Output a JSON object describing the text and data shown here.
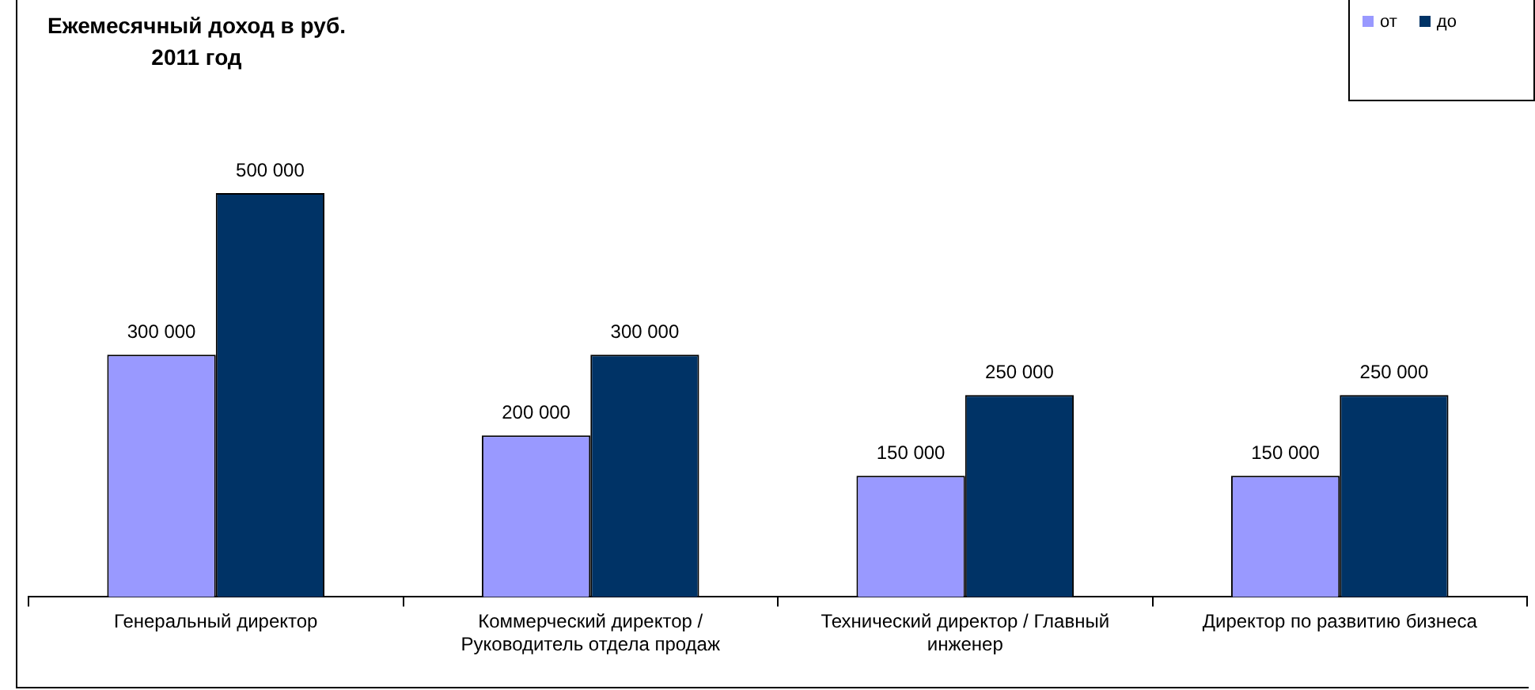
{
  "chart_data": {
    "type": "bar",
    "title": "Ежемесячный доход в руб.\n2011 год",
    "categories": [
      "Генеральный директор",
      "Коммерческий директор / Руководитель отдела продаж",
      "Технический директор / Главный инженер",
      "Директор по развитию бизнеса"
    ],
    "series": [
      {
        "name": "от",
        "color": "#9999ff",
        "values": [
          300000,
          200000,
          150000,
          150000
        ],
        "value_labels": [
          "300 000",
          "200 000",
          "150 000",
          "150 000"
        ]
      },
      {
        "name": "до",
        "color": "#003366",
        "values": [
          500000,
          300000,
          250000,
          250000
        ],
        "value_labels": [
          "500 000",
          "300 000",
          "250 000",
          "250 000"
        ]
      }
    ],
    "tick_labels": "x",
    "legend": "top right",
    "grid": false
  }
}
